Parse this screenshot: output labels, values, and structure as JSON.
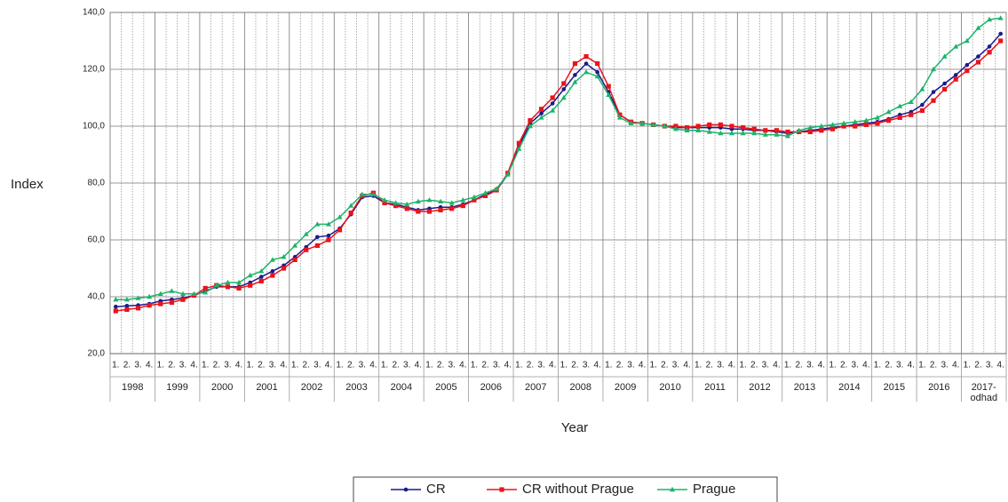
{
  "chart_data": {
    "type": "line",
    "x_label": "Year",
    "y_label": "Index",
    "categories": [
      "1.",
      "2.",
      "3.",
      "4.",
      "1.",
      "2.",
      "3.",
      "4.",
      "1.",
      "2.",
      "3.",
      "4.",
      "1.",
      "2.",
      "3.",
      "4.",
      "1.",
      "2.",
      "3.",
      "4.",
      "1.",
      "2.",
      "3.",
      "4.",
      "1.",
      "2.",
      "3.",
      "4.",
      "1.",
      "2.",
      "3.",
      "4.",
      "1.",
      "2.",
      "3.",
      "4.",
      "1.",
      "2.",
      "3.",
      "4.",
      "1.",
      "2.",
      "3.",
      "4.",
      "1.",
      "2.",
      "3.",
      "4.",
      "1.",
      "2.",
      "3.",
      "4.",
      "1.",
      "2.",
      "3.",
      "4.",
      "1.",
      "2.",
      "3.",
      "4.",
      "1.",
      "2.",
      "3.",
      "4.",
      "1.",
      "2.",
      "3.",
      "4.",
      "1.",
      "2.",
      "3.",
      "4.",
      "1.",
      "2.",
      "3.",
      "4.",
      "1.",
      "2.",
      "3.",
      "4."
    ],
    "groups": [
      "1998",
      "1999",
      "2000",
      "2001",
      "2002",
      "2003",
      "2004",
      "2005",
      "2006",
      "2007",
      "2008",
      "2009",
      "2010",
      "2011",
      "2012",
      "2013",
      "2014",
      "2015",
      "2016",
      "2017-odhad"
    ],
    "series": [
      {
        "name": "CR",
        "color": "#1a1a8c",
        "marker": "circle",
        "values": [
          36.5,
          36.8,
          37,
          37.5,
          38.5,
          39,
          39.5,
          40.5,
          42,
          43.5,
          43.5,
          43.5,
          45,
          47,
          49,
          51,
          54,
          57.5,
          61,
          61.5,
          64,
          69,
          75,
          75.5,
          73,
          72.5,
          71.5,
          70.5,
          71,
          71.5,
          71.5,
          72.5,
          74,
          76,
          77.5,
          83,
          93,
          101,
          104.5,
          108,
          113,
          118,
          122,
          119,
          112,
          104,
          101.5,
          101,
          100.5,
          100,
          99.5,
          99.5,
          99.5,
          99.5,
          99.5,
          99,
          99,
          98.5,
          98.5,
          98,
          97.5,
          98,
          98.5,
          99,
          99.5,
          100,
          100.5,
          101,
          101.5,
          102.5,
          104,
          105,
          107.5,
          112,
          115,
          118,
          121.5,
          124.5,
          128,
          132.5
        ]
      },
      {
        "name": "CR without Prague",
        "color": "#e8141c",
        "marker": "square",
        "values": [
          35,
          35.5,
          36,
          37,
          37.5,
          38,
          39,
          40.5,
          43,
          44,
          43.5,
          43,
          44,
          45.5,
          47.5,
          50,
          53,
          56.5,
          58,
          60,
          63.5,
          69.5,
          75.5,
          76.5,
          73,
          72,
          71,
          70,
          70,
          70.5,
          71,
          72,
          74,
          75.5,
          77.5,
          83.5,
          94,
          102,
          106,
          110,
          115,
          122,
          124.5,
          122,
          114,
          104,
          101.5,
          101,
          100.5,
          100,
          100,
          99.5,
          100,
          100.5,
          100.5,
          100,
          99.5,
          99,
          98.5,
          98.5,
          98,
          98,
          98,
          98.5,
          99,
          100,
          100,
          100.5,
          101,
          102,
          103,
          104,
          105.5,
          109,
          113,
          116.5,
          119.5,
          122.5,
          126,
          130
        ]
      },
      {
        "name": "Prague",
        "color": "#1db36b",
        "marker": "triangle",
        "values": [
          39,
          39,
          39.5,
          40,
          41,
          42,
          41,
          41,
          41.5,
          44,
          45,
          45,
          47.5,
          49,
          53,
          54,
          58,
          62,
          65.5,
          65.5,
          68,
          72,
          76,
          76,
          74,
          73,
          72.5,
          73.5,
          74,
          73.5,
          73,
          74,
          75,
          76.5,
          78,
          83,
          92,
          100,
          103,
          105.5,
          110,
          115.5,
          119,
          117.5,
          111,
          103,
          101,
          101,
          100.5,
          100,
          99,
          98.5,
          98.5,
          98,
          97.5,
          97.5,
          97.5,
          97.5,
          97,
          97,
          96.5,
          98.5,
          99.5,
          100,
          100.5,
          101,
          101.5,
          102,
          103,
          105,
          107,
          108.5,
          113,
          120,
          124.5,
          128,
          130,
          134.5,
          137.5,
          138
        ]
      }
    ],
    "ylim": [
      20,
      140
    ],
    "yticks": [
      {
        "value": 20,
        "label": "20,0"
      },
      {
        "value": 40,
        "label": "40,0"
      },
      {
        "value": 60,
        "label": "60,0"
      },
      {
        "value": 80,
        "label": "80,0"
      },
      {
        "value": 100,
        "label": "100,0"
      },
      {
        "value": 120,
        "label": "120,0"
      },
      {
        "value": 140,
        "label": "140,0"
      }
    ],
    "grid": true,
    "legend": "bottom"
  }
}
